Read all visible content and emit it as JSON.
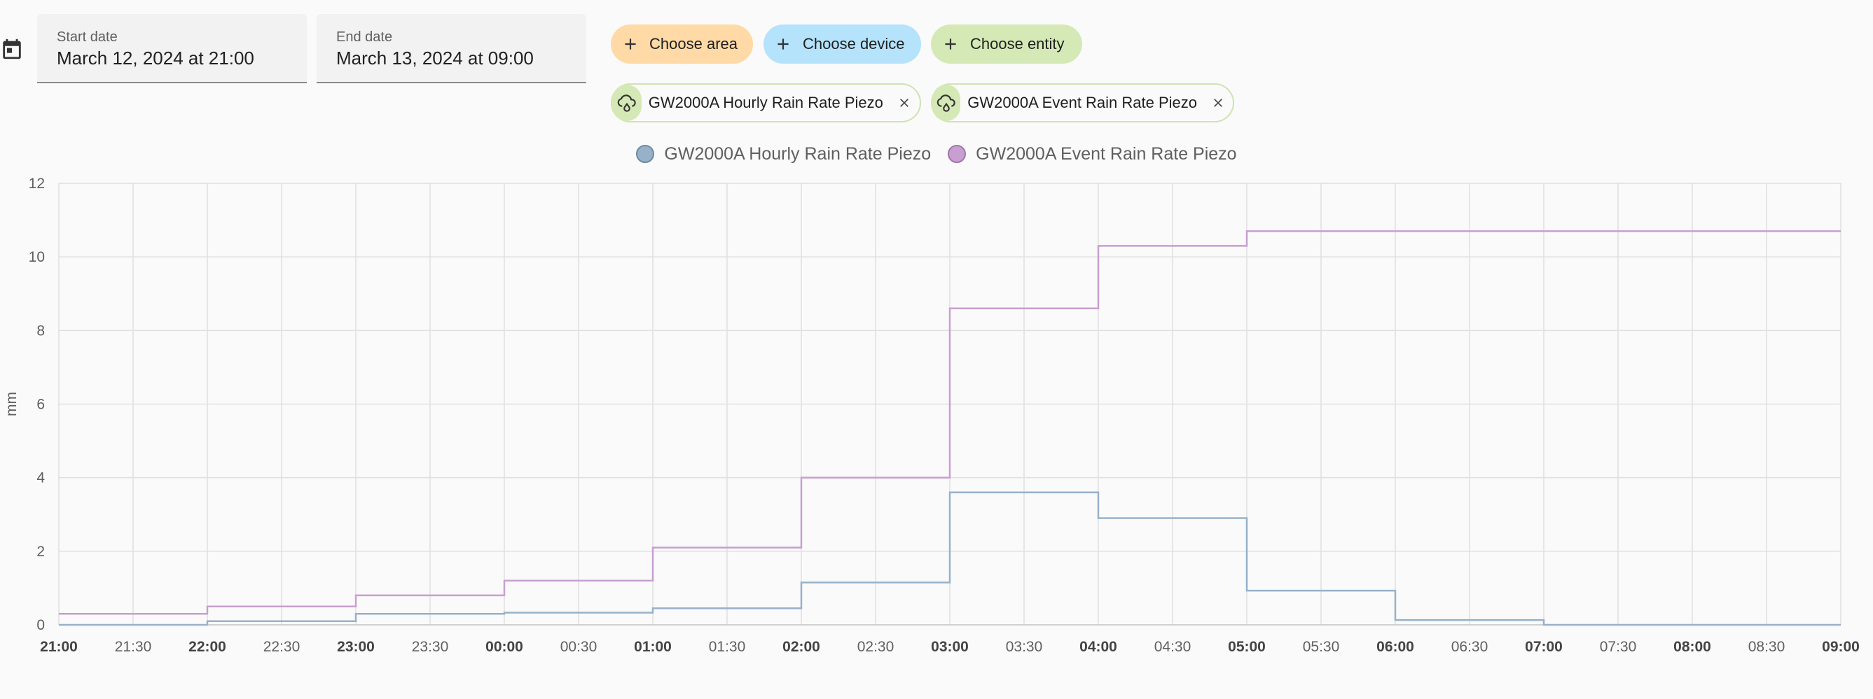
{
  "date_range": {
    "start_label": "Start date",
    "start_value": "March 12, 2024 at 21:00",
    "end_label": "End date",
    "end_value": "March 13, 2024 at 09:00"
  },
  "target_picker": {
    "area_label": "Choose area",
    "device_label": "Choose device",
    "entity_label": "Choose entity",
    "area_color": "#ffd9a6",
    "device_color": "#b5e3fb",
    "entity_color": "#d4e9b5"
  },
  "selected_entities": [
    {
      "label": "GW2000A Hourly Rain Rate Piezo",
      "icon": "weather-pouring-icon"
    },
    {
      "label": "GW2000A Event Rain Rate Piezo",
      "icon": "weather-pouring-icon"
    }
  ],
  "chart_data": {
    "type": "line",
    "step": true,
    "title": "",
    "xlabel": "",
    "ylabel": "mm",
    "ylim": [
      0,
      12
    ],
    "yticks": [
      0,
      2,
      4,
      6,
      8,
      10,
      12
    ],
    "xlim": [
      "21:00",
      "09:00"
    ],
    "x_tick_labels": [
      "21:00",
      "21:30",
      "22:00",
      "22:30",
      "23:00",
      "23:30",
      "00:00",
      "00:30",
      "01:00",
      "01:30",
      "02:00",
      "02:30",
      "03:00",
      "03:30",
      "04:00",
      "04:30",
      "05:00",
      "05:30",
      "06:00",
      "06:30",
      "07:00",
      "07:30",
      "08:00",
      "08:30",
      "09:00"
    ],
    "x_tick_bold": [
      "21:00",
      "22:00",
      "23:00",
      "00:00",
      "01:00",
      "02:00",
      "03:00",
      "04:00",
      "05:00",
      "06:00",
      "07:00",
      "08:00",
      "09:00"
    ],
    "grid": true,
    "legend_position": "top-center",
    "x": [
      "21:00",
      "22:00",
      "23:00",
      "00:00",
      "01:00",
      "02:00",
      "03:00",
      "04:00",
      "05:00",
      "06:00",
      "07:00",
      "08:00",
      "09:00"
    ],
    "series": [
      {
        "name": "GW2000A Hourly Rain Rate Piezo",
        "color": "#97b1c9",
        "values": [
          0.0,
          0.1,
          0.3,
          0.33,
          0.45,
          1.15,
          3.6,
          2.9,
          0.93,
          0.13,
          0.0,
          0.0,
          0.0
        ]
      },
      {
        "name": "GW2000A Event Rain Rate Piezo",
        "color": "#c89fd0",
        "values": [
          0.3,
          0.5,
          0.8,
          1.2,
          2.1,
          4.0,
          8.6,
          10.3,
          10.7,
          10.7,
          10.7,
          10.7,
          10.7
        ]
      }
    ]
  }
}
